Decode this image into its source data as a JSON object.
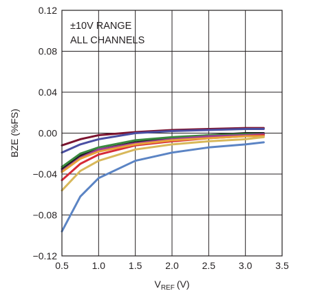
{
  "chart_data": {
    "type": "line",
    "xlabel": "V",
    "xlabel_sub": "REF",
    "xlabel_unit": "(V)",
    "ylabel": "BZE (%FS)",
    "annotations": [
      "±10V RANGE",
      "ALL CHANNELS"
    ],
    "annotation_position": "top-left",
    "grid": true,
    "legend": "none",
    "xlim": [
      0.5,
      3.5
    ],
    "ylim": [
      -0.12,
      0.12
    ],
    "x_ticks": [
      "0.5",
      "1.0",
      "1.5",
      "2.0",
      "2.5",
      "3.0",
      "3.5"
    ],
    "y_ticks": [
      "0.12",
      "0.08",
      "0.04",
      "0.00",
      "−0.04",
      "−0.08",
      "−0.12"
    ],
    "x": [
      0.5,
      0.75,
      1.0,
      1.5,
      2.0,
      2.5,
      3.0,
      3.25
    ],
    "series": [
      {
        "color": "#7b1430",
        "values": [
          -0.012,
          -0.006,
          -0.002,
          0.001,
          0.003,
          0.004,
          0.005,
          0.005
        ]
      },
      {
        "color": "#4a4fa3",
        "values": [
          -0.019,
          -0.011,
          -0.006,
          0.0,
          0.002,
          0.003,
          0.004,
          0.004
        ]
      },
      {
        "color": "#1c1c1c",
        "values": [
          -0.035,
          -0.022,
          -0.016,
          -0.009,
          -0.005,
          -0.002,
          0.0,
          0.0
        ]
      },
      {
        "color": "#3a8a3f",
        "values": [
          -0.033,
          -0.02,
          -0.014,
          -0.007,
          -0.004,
          -0.002,
          -0.001,
          -0.001
        ]
      },
      {
        "color": "#9e3f95",
        "values": [
          -0.037,
          -0.024,
          -0.016,
          -0.01,
          -0.006,
          -0.003,
          -0.002,
          -0.001
        ]
      },
      {
        "color": "#d62b37",
        "values": [
          -0.046,
          -0.03,
          -0.021,
          -0.012,
          -0.008,
          -0.005,
          -0.003,
          -0.002
        ]
      },
      {
        "color": "#e8a23a",
        "values": [
          -0.038,
          -0.025,
          -0.018,
          -0.011,
          -0.007,
          -0.005,
          -0.003,
          -0.003
        ]
      },
      {
        "color": "#d8b85a",
        "values": [
          -0.056,
          -0.037,
          -0.027,
          -0.016,
          -0.011,
          -0.008,
          -0.006,
          -0.004
        ]
      },
      {
        "color": "#5b84c4",
        "values": [
          -0.096,
          -0.062,
          -0.044,
          -0.027,
          -0.019,
          -0.014,
          -0.011,
          -0.009
        ]
      }
    ]
  }
}
